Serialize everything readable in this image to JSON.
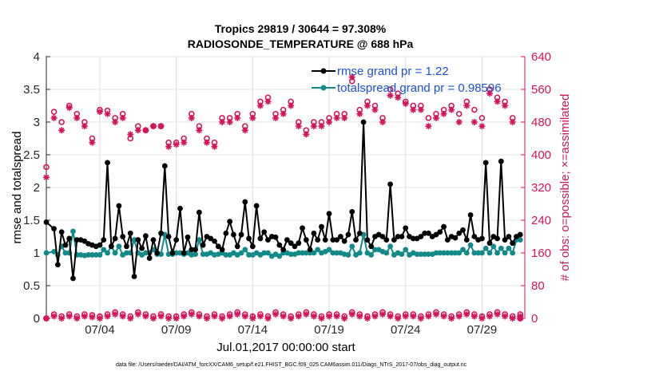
{
  "chart_data": {
    "type": "line",
    "title": [
      "Tropics 29819 / 30644 = 97.308%",
      "RADIOSONDE_TEMPERATURE @ 688 hPa"
    ],
    "xlabel": "Jul.01,2017 00:00:00 start",
    "ylabel_left": "rmse and totalspread",
    "ylabel_right": "# of obs: o=possible; ×=assimilated",
    "footer": "data file: /Users/raeder/DAI/ATM_forcXX/CAM6_setup/f.e21.FHIST_BGC.f09_025.CAM6assim.011/Diags_NTrS_2017-07/obs_diag_output.nc",
    "xlim": [
      0.5,
      31.8
    ],
    "ylim_left": [
      0,
      4
    ],
    "ylim_right": [
      0,
      640
    ],
    "xticks": [
      4,
      9,
      14,
      19,
      24,
      29
    ],
    "xtick_labels": [
      "07/04",
      "07/09",
      "07/14",
      "07/19",
      "07/24",
      "07/29"
    ],
    "yticks_left": [
      "0",
      "0.5",
      "1",
      "1.5",
      "2",
      "2.5",
      "3",
      "3.5",
      "4"
    ],
    "yticks_right": [
      "0",
      "80",
      "160",
      "240",
      "320",
      "400",
      "480",
      "560",
      "640"
    ],
    "legend": [
      "rmse grand pr = 1.22",
      "totalspread grand pr = 0.98596"
    ],
    "colors": {
      "rmse": "#000000",
      "spread": "#138a8a",
      "obs": "#d4145a",
      "legend_text": "#1f4fd8"
    },
    "x": [
      0.5,
      1.0,
      1.25,
      1.5,
      1.75,
      2.0,
      2.25,
      2.5,
      2.75,
      3.0,
      3.25,
      3.5,
      3.75,
      4.0,
      4.25,
      4.5,
      4.75,
      5.0,
      5.25,
      5.5,
      5.75,
      6.0,
      6.25,
      6.5,
      6.75,
      7.0,
      7.25,
      7.5,
      7.75,
      8.0,
      8.25,
      8.5,
      8.75,
      9.0,
      9.25,
      9.5,
      9.75,
      10.0,
      10.25,
      10.5,
      10.75,
      11.0,
      11.25,
      11.5,
      11.75,
      12.0,
      12.25,
      12.5,
      12.75,
      13.0,
      13.25,
      13.5,
      13.75,
      14.0,
      14.25,
      14.5,
      14.75,
      15.0,
      15.25,
      15.5,
      15.75,
      16.0,
      16.25,
      16.5,
      16.75,
      17.0,
      17.25,
      17.5,
      17.75,
      18.0,
      18.25,
      18.5,
      18.75,
      19.0,
      19.25,
      19.5,
      19.75,
      20.0,
      20.25,
      20.5,
      20.75,
      21.0,
      21.25,
      21.5,
      21.75,
      22.0,
      22.25,
      22.5,
      22.75,
      23.0,
      23.25,
      23.5,
      23.75,
      24.0,
      24.25,
      24.5,
      24.75,
      25.0,
      25.25,
      25.5,
      25.75,
      26.0,
      26.25,
      26.5,
      26.75,
      27.0,
      27.25,
      27.5,
      27.75,
      28.0,
      28.25,
      28.5,
      28.75,
      29.0,
      29.25,
      29.5,
      29.75,
      30.0,
      30.25,
      30.5,
      30.75,
      31.0,
      31.25,
      31.5
    ],
    "series": [
      {
        "name": "rmse",
        "values": [
          1.47,
          1.37,
          0.82,
          1.32,
          1.12,
          1.22,
          0.61,
          1.2,
          1.2,
          1.18,
          1.14,
          1.12,
          1.1,
          1.12,
          1.2,
          2.38,
          1.1,
          1.22,
          1.72,
          1.25,
          1.1,
          1.3,
          0.64,
          1.2,
          1.07,
          1.26,
          0.92,
          1.2,
          1.0,
          1.3,
          2.33,
          1.25,
          1.0,
          1.2,
          1.68,
          1.0,
          1.24,
          1.05,
          1.05,
          1.62,
          1.12,
          1.25,
          1.22,
          1.18,
          1.1,
          1.05,
          1.3,
          1.48,
          1.28,
          1.1,
          1.28,
          1.78,
          1.22,
          1.1,
          1.72,
          1.22,
          1.32,
          1.2,
          1.25,
          1.24,
          1.12,
          1.05,
          1.2,
          1.15,
          1.1,
          1.15,
          1.38,
          1.2,
          1.05,
          1.3,
          1.2,
          1.4,
          1.2,
          1.6,
          1.2,
          1.2,
          1.25,
          1.18,
          1.28,
          1.63,
          1.2,
          1.3,
          3.0,
          1.2,
          1.1,
          1.25,
          1.28,
          1.25,
          1.2,
          2.05,
          1.2,
          1.25,
          1.25,
          1.38,
          1.25,
          1.22,
          1.22,
          1.25,
          1.3,
          1.3,
          1.25,
          1.28,
          1.32,
          1.4,
          1.2,
          1.25,
          1.23,
          1.3,
          1.35,
          1.2,
          1.58,
          1.25,
          1.2,
          1.22,
          2.38,
          1.15,
          1.25,
          1.22,
          2.4,
          1.2,
          1.25,
          1.15,
          1.25,
          1.28
        ]
      },
      {
        "name": "totalspread",
        "values": [
          1.0,
          1.02,
          0.97,
          1.1,
          1.0,
          1.0,
          1.33,
          0.97,
          0.97,
          0.96,
          0.97,
          0.97,
          0.97,
          0.97,
          1.05,
          1.0,
          1.1,
          1.0,
          1.1,
          0.97,
          1.0,
          1.0,
          1.2,
          1.0,
          0.97,
          1.0,
          1.0,
          1.05,
          0.98,
          0.98,
          1.28,
          0.98,
          0.98,
          1.0,
          1.0,
          0.98,
          1.0,
          0.97,
          0.98,
          1.2,
          0.98,
          0.98,
          1.0,
          0.97,
          0.98,
          1.0,
          0.97,
          0.97,
          1.0,
          0.97,
          1.0,
          1.05,
          0.97,
          0.97,
          1.0,
          0.97,
          1.0,
          1.0,
          0.95,
          0.98,
          0.95,
          1.0,
          1.0,
          0.98,
          0.98,
          1.0,
          1.0,
          1.0,
          1.0,
          1.0,
          1.05,
          1.0,
          1.02,
          1.05,
          1.0,
          1.0,
          1.0,
          0.98,
          0.97,
          1.1,
          0.97,
          1.0,
          1.28,
          1.0,
          0.97,
          1.05,
          1.05,
          1.02,
          1.0,
          1.1,
          0.97,
          1.0,
          0.98,
          1.05,
          0.97,
          1.0,
          0.98,
          0.98,
          0.98,
          0.98,
          0.98,
          1.0,
          1.0,
          1.0,
          1.0,
          1.0,
          1.0,
          1.0,
          1.05,
          1.0,
          1.12,
          1.0,
          1.0,
          1.0,
          1.07,
          1.0,
          1.1,
          1.0,
          1.07,
          1.0,
          1.07,
          1.0,
          1.2,
          1.2
        ]
      }
    ],
    "obs_possible": {
      "x": [
        0.5,
        1.0,
        1.5,
        2.0,
        2.5,
        3.0,
        3.5,
        4.0,
        4.5,
        5.0,
        5.5,
        6.0,
        6.5,
        7.0,
        7.5,
        8.0,
        8.5,
        9.0,
        9.5,
        10.0,
        10.5,
        11.0,
        11.5,
        12.0,
        12.5,
        13.0,
        13.5,
        14.0,
        14.5,
        15.0,
        15.5,
        16.0,
        16.5,
        17.0,
        17.5,
        18.0,
        18.5,
        19.0,
        19.5,
        20.0,
        20.5,
        21.0,
        21.5,
        22.0,
        22.5,
        23.0,
        23.5,
        24.0,
        24.5,
        25.0,
        25.5,
        26.0,
        26.5,
        27.0,
        27.5,
        28.0,
        28.5,
        29.0,
        29.5,
        30.0,
        30.5,
        31.0,
        31.5
      ],
      "values": [
        370,
        505,
        480,
        520,
        500,
        480,
        440,
        510,
        508,
        490,
        500,
        440,
        470,
        460,
        470,
        470,
        430,
        430,
        440,
        500,
        470,
        440,
        430,
        490,
        490,
        500,
        470,
        500,
        530,
        540,
        500,
        510,
        530,
        480,
        460,
        480,
        480,
        490,
        500,
        500,
        580,
        510,
        530,
        520,
        490,
        560,
        550,
        530,
        520,
        520,
        490,
        500,
        510,
        520,
        500,
        530,
        510,
        490,
        560,
        540,
        530,
        490,
        0
      ]
    },
    "obs_assimilated": {
      "x": [
        0.5,
        1.0,
        1.5,
        2.0,
        2.5,
        3.0,
        3.5,
        4.0,
        4.5,
        5.0,
        5.5,
        6.0,
        6.5,
        7.0,
        7.5,
        8.0,
        8.5,
        9.0,
        9.5,
        10.0,
        10.5,
        11.0,
        11.5,
        12.0,
        12.5,
        13.0,
        13.5,
        14.0,
        14.5,
        15.0,
        15.5,
        16.0,
        16.5,
        17.0,
        17.5,
        18.0,
        18.5,
        19.0,
        19.5,
        20.0,
        20.5,
        21.0,
        21.5,
        22.0,
        22.5,
        23.0,
        23.5,
        24.0,
        24.5,
        25.0,
        25.5,
        26.0,
        26.5,
        27.0,
        27.5,
        28.0,
        28.5,
        29.0,
        29.5,
        30.0,
        30.5,
        31.0,
        31.5
      ],
      "values": [
        345,
        490,
        460,
        515,
        490,
        470,
        430,
        505,
        500,
        480,
        490,
        450,
        460,
        460,
        470,
        470,
        420,
        425,
        430,
        490,
        460,
        430,
        420,
        480,
        480,
        490,
        460,
        490,
        520,
        530,
        490,
        500,
        520,
        470,
        450,
        470,
        470,
        480,
        490,
        490,
        590,
        500,
        520,
        510,
        480,
        545,
        540,
        525,
        510,
        510,
        470,
        490,
        500,
        510,
        480,
        520,
        480,
        470,
        550,
        530,
        520,
        480,
        0
      ]
    },
    "obs_zero_possible": [
      0,
      10,
      5,
      10,
      5,
      10,
      8,
      5,
      10,
      15,
      10,
      5,
      15,
      10,
      5,
      10,
      5,
      5,
      10,
      15,
      10,
      5,
      10,
      5,
      10,
      15,
      10,
      5,
      10,
      5,
      15,
      10,
      5,
      10,
      15,
      10,
      5,
      10,
      10,
      5,
      15,
      10,
      5,
      10,
      15,
      10,
      5,
      10,
      10,
      5,
      10,
      15,
      10,
      5,
      10,
      15,
      10,
      5,
      10,
      15,
      10,
      5,
      10
    ]
  }
}
